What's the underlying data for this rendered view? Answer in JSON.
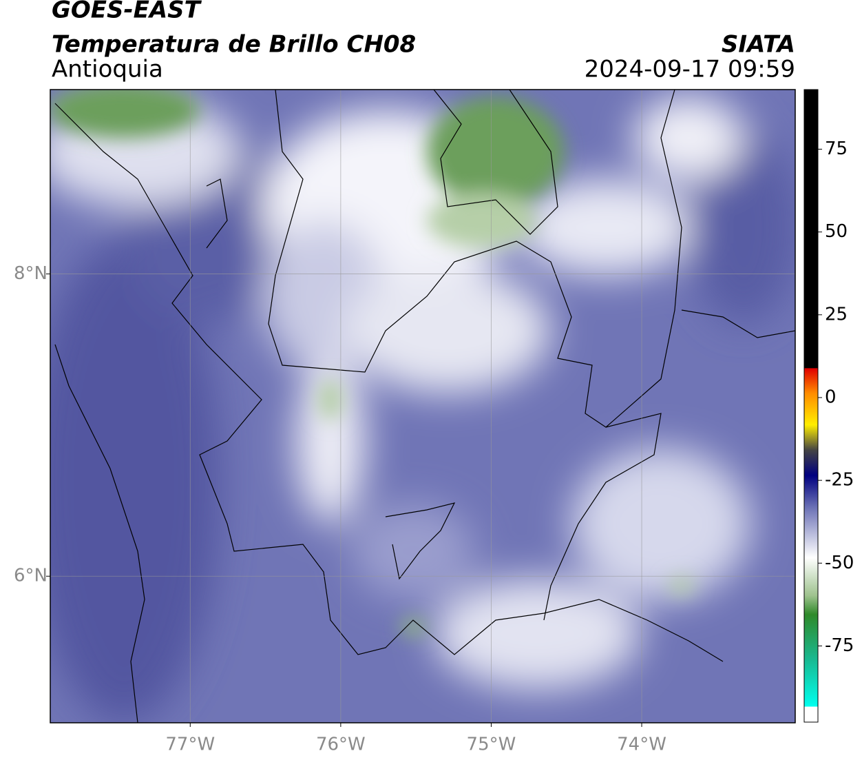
{
  "header": {
    "title": "GOES-EAST",
    "subtitle": "Temperatura de Brillo CH08",
    "region": "Antioquia",
    "source": "SIATA",
    "datetime": "2024-09-17 09:59"
  },
  "map": {
    "xlim": [
      -77.93,
      -72.98
    ],
    "ylim": [
      5.03,
      9.22
    ],
    "xticks": [
      {
        "value": -77,
        "label": "77°W"
      },
      {
        "value": -76,
        "label": "76°W"
      },
      {
        "value": -75,
        "label": "75°W"
      },
      {
        "value": -74,
        "label": "74°W"
      }
    ],
    "yticks": [
      {
        "value": 8,
        "label": "8°N"
      },
      {
        "value": 6,
        "label": "6°N"
      }
    ]
  },
  "colorbar": {
    "lim": [
      -98,
      93
    ],
    "ticks": [
      75,
      50,
      25,
      0,
      -25,
      -50,
      -75
    ]
  }
}
